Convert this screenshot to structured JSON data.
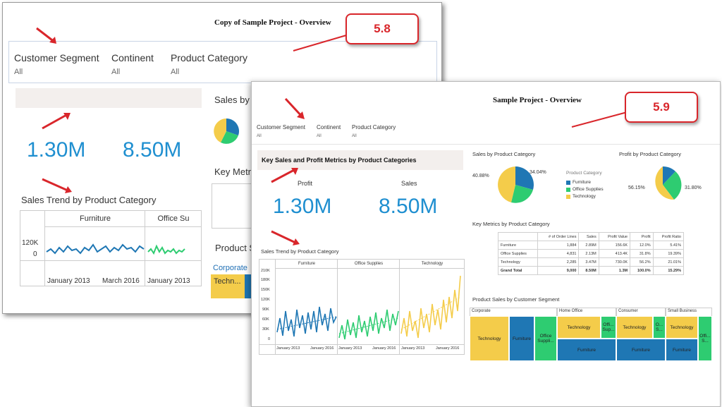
{
  "colors": {
    "furniture": "#1f77b4",
    "office": "#2ecc71",
    "technology": "#f4cc4a",
    "accent": "#1f8fd0",
    "callout": "#d9262b"
  },
  "back": {
    "title": "Copy of Sample Project - Overview",
    "callout": "5.8",
    "filters": [
      {
        "label": "Customer Segment",
        "value": "All"
      },
      {
        "label": "Continent",
        "value": "All"
      },
      {
        "label": "Product Category",
        "value": "All"
      }
    ],
    "metric1": "1.30M",
    "metric2": "8.50M",
    "sales_by_partial": "Sales by",
    "key_metrics_partial": "Key Metri",
    "product_partial": "Product S",
    "trend_title": "Sales Trend by Product Category",
    "trend_cols": [
      "Furniture",
      "Office Su"
    ],
    "trend_y": [
      "120K",
      "0"
    ],
    "trend_x": [
      "January 2013",
      "March 2016",
      "January 2013"
    ],
    "corporate": "Corporate",
    "techn": "Techn..."
  },
  "front": {
    "title": "Sample Project - Overview",
    "callout": "5.9",
    "filters": [
      {
        "label": "Customer Segment",
        "value": "All"
      },
      {
        "label": "Continent",
        "value": "All"
      },
      {
        "label": "Product Category",
        "value": "All"
      }
    ],
    "kpi_title": "Key Sales and Profit Metrics by Product Categories",
    "profit_label": "Profit",
    "sales_label": "Sales",
    "profit_value": "1.30M",
    "sales_value": "8.50M",
    "sales_pie_title": "Sales by Product Category",
    "profit_pie_title": "Profit by Product Category",
    "sales_pie_left": "40.88%",
    "sales_pie_right": "34.04%",
    "profit_pie_left": "56.15%",
    "profit_pie_right": "31.80%",
    "legend_title": "Product Category",
    "legend": [
      "Furniture",
      "Office Supplies",
      "Technology"
    ],
    "key_metrics_title": "Key Metrics by Product Category",
    "km_headers": [
      "",
      "# of Order Lines",
      "Sales",
      "Profit Value",
      "Profit",
      "Profit Ratio"
    ],
    "km_rows": [
      [
        "Furniture",
        "1,884",
        "2.89M",
        "156.6K",
        "12.0%",
        "5.41%"
      ],
      [
        "Office Supplies",
        "4,831",
        "2.13M",
        "413.4K",
        "31.8%",
        "19.39%"
      ],
      [
        "Technology",
        "2,285",
        "3.47M",
        "730.0K",
        "56.2%",
        "21.01%"
      ],
      [
        "Grand Total",
        "9,000",
        "8.50M",
        "1.3M",
        "100.0%",
        "15.29%"
      ]
    ],
    "trend_title": "Sales Trend by Product Category",
    "trend_cols": [
      "Furniture",
      "Office Supplies",
      "Technology"
    ],
    "trend_y": [
      "210K",
      "180K",
      "150K",
      "120K",
      "90K",
      "60K",
      "30K",
      "0"
    ],
    "trend_x_start": "January 2013",
    "trend_x_end": "January 2016",
    "segment_title": "Product Sales by Customer Segment",
    "segments": {
      "corporate": "Corporate",
      "home_office": "Home Office",
      "consumer": "Consumer",
      "small_business": "Small Business"
    },
    "tm": {
      "technology": "Technology",
      "furniture": "Furniture",
      "office_suppli": "Office Suppli...",
      "offi_sup": "Offi... Sup...",
      "o_s": "O... S...",
      "offi_s": "Offi... S..."
    }
  }
}
